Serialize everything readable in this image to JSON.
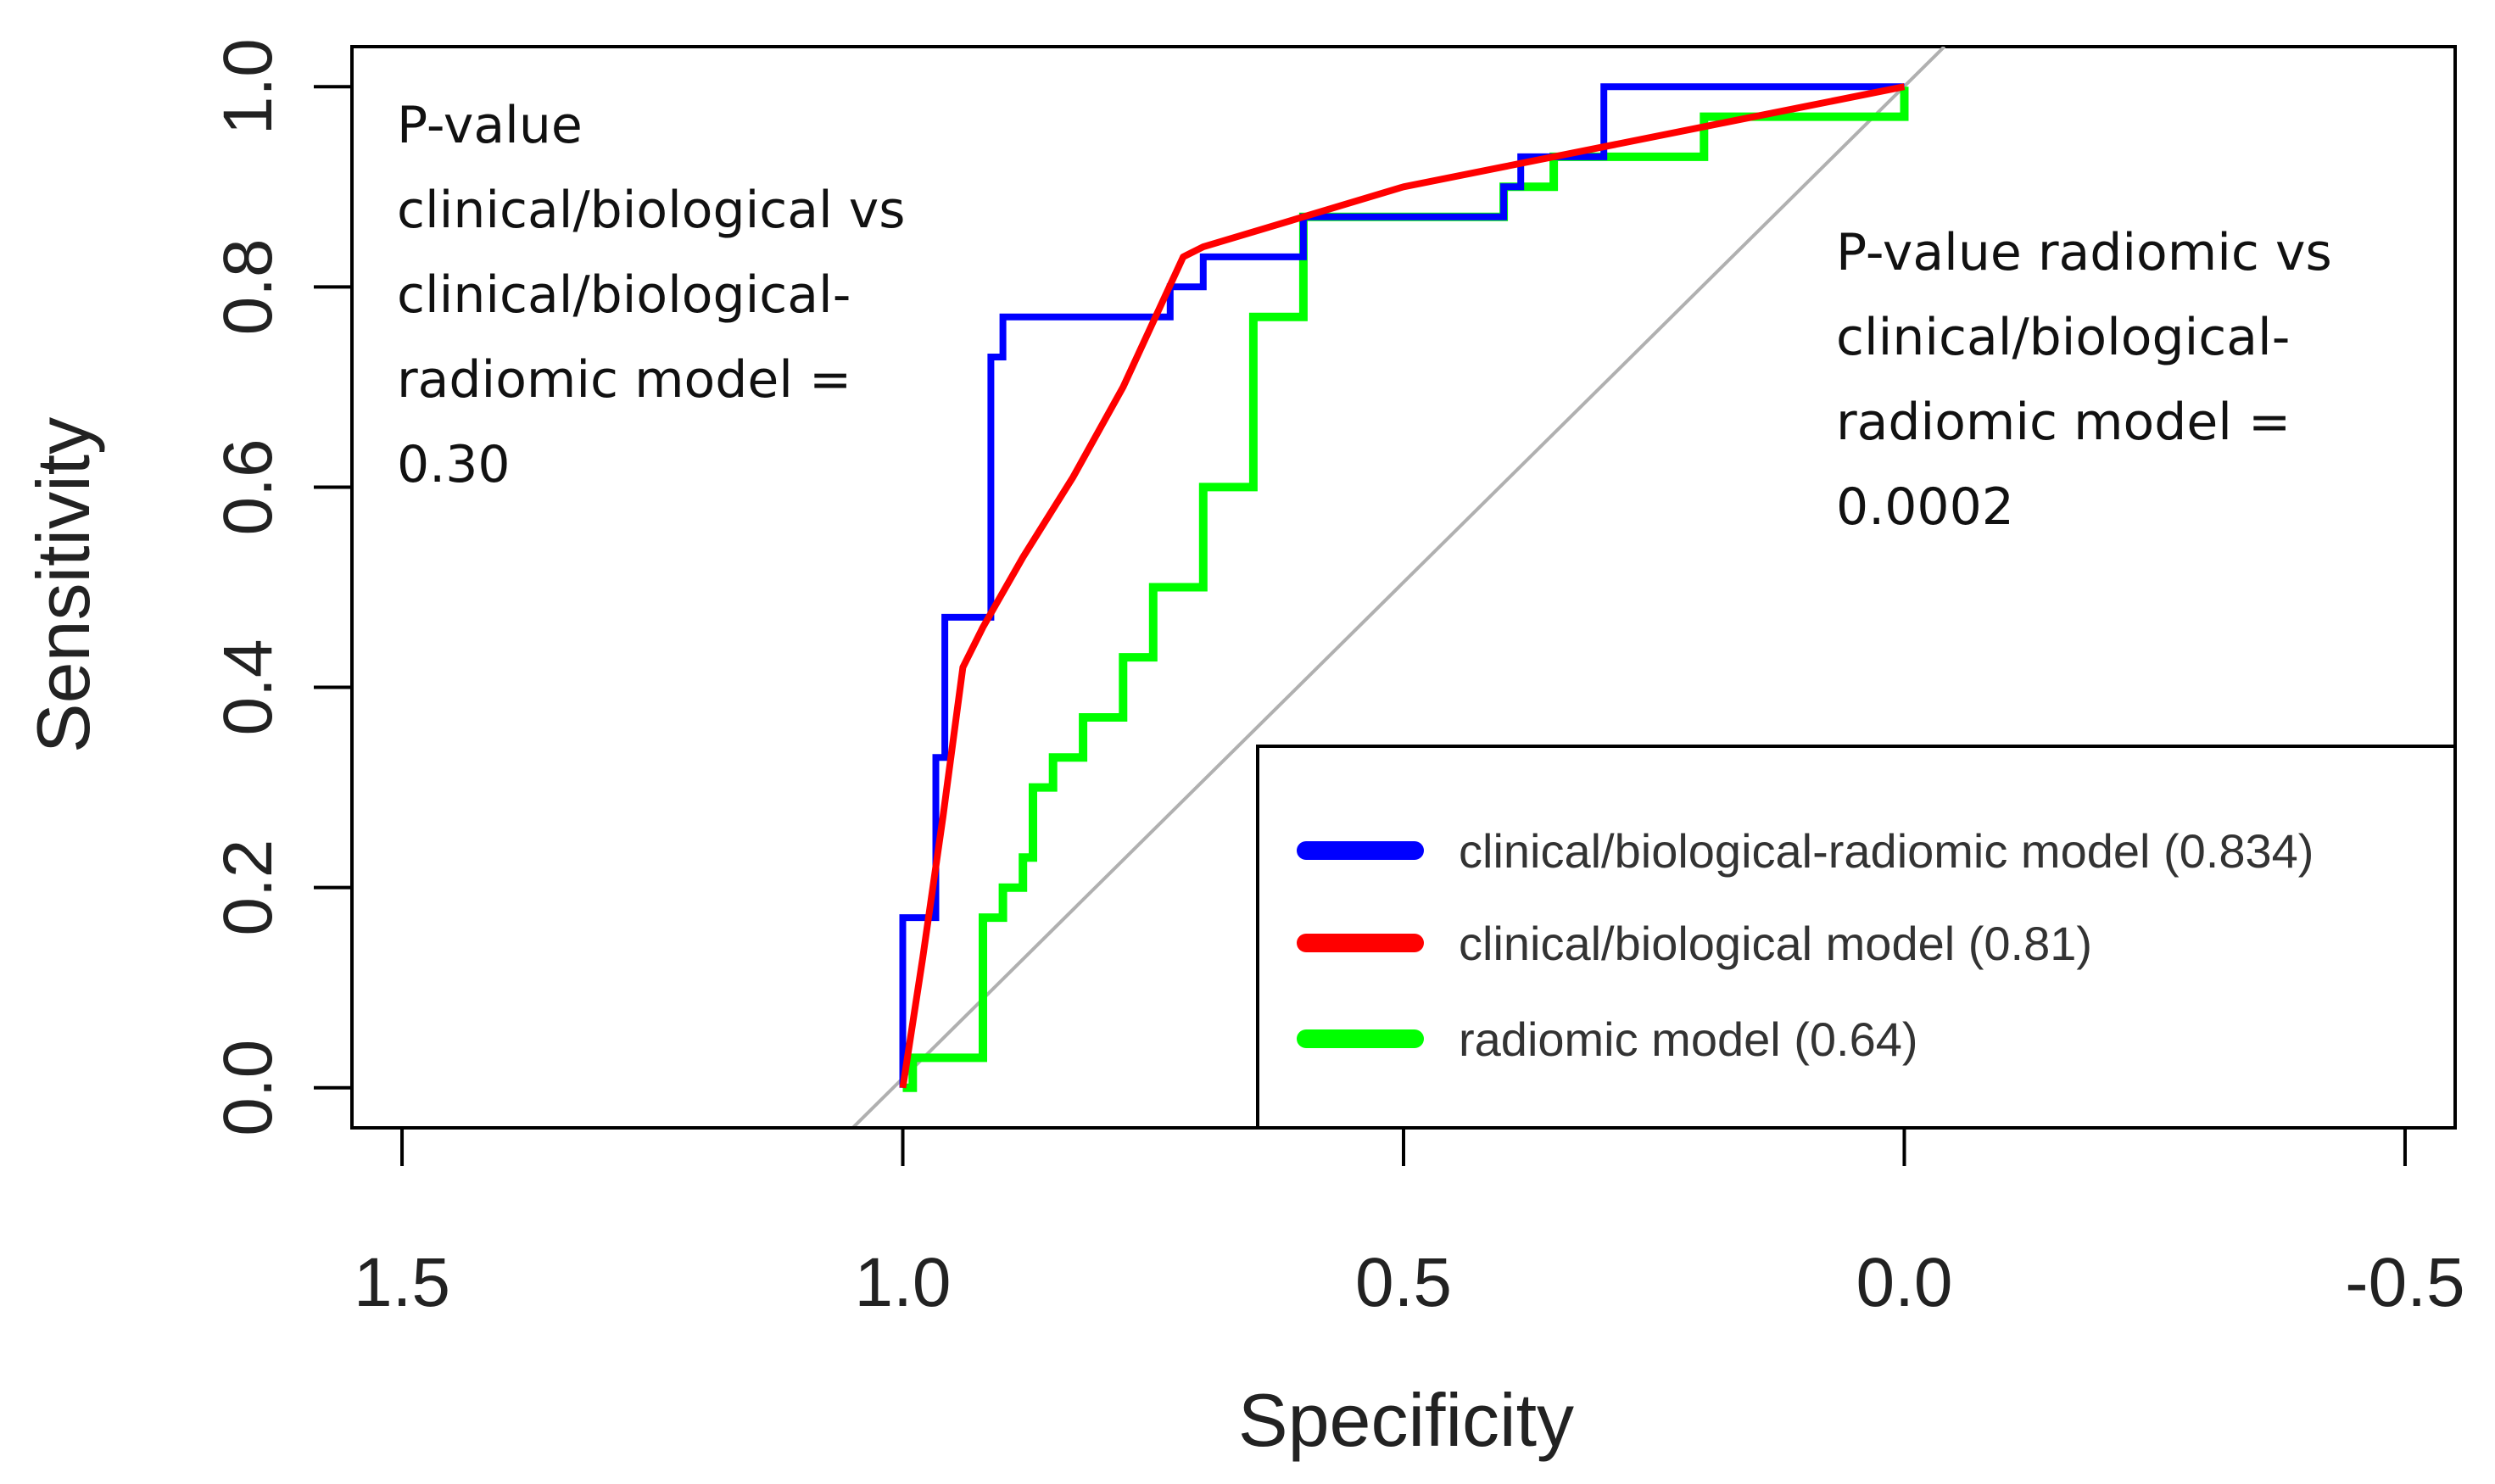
{
  "chart_data": {
    "type": "line",
    "xlabel": "Specificity",
    "ylabel": "Sensitivity",
    "xlim": [
      1.55,
      -0.55
    ],
    "ylim": [
      -0.04,
      1.04
    ],
    "x_ticks": [
      "1.5",
      "1.0",
      "0.5",
      "0.0",
      "-0.5"
    ],
    "x_tick_values": [
      1.5,
      1.0,
      0.5,
      0.0,
      -0.5
    ],
    "y_ticks": [
      "0.0",
      "0.2",
      "0.4",
      "0.6",
      "0.8",
      "1.0"
    ],
    "y_tick_values": [
      0.0,
      0.2,
      0.4,
      0.6,
      0.8,
      1.0
    ],
    "diagonal": {
      "color": "#b0b0b0",
      "from": [
        1.05,
        -0.04
      ],
      "to": [
        -0.04,
        1.04
      ]
    },
    "annotations": [
      {
        "id": "left",
        "lines": [
          "P-value",
          "clinical/biological vs",
          "clinical/biological-",
          "radiomic model =",
          "0.30"
        ]
      },
      {
        "id": "right",
        "lines": [
          "P-value radiomic vs",
          "clinical/biological-",
          "radiomic model =",
          "0.0002"
        ]
      }
    ],
    "legend_position": "bottom-right",
    "series": [
      {
        "name": "clinical/biological-radiomic model",
        "legend_label": "clinical/biological-radiomic model (0.834)",
        "auc": 0.834,
        "color": "#0000ff",
        "x": [
          1.0,
          1.0,
          0.967,
          0.967,
          0.958,
          0.958,
          0.945,
          0.945,
          0.912,
          0.912,
          0.9,
          0.9,
          0.733,
          0.733,
          0.7,
          0.7,
          0.6,
          0.6,
          0.4,
          0.4,
          0.383,
          0.383,
          0.3,
          0.3,
          0.0
        ],
        "y": [
          0.0,
          0.17,
          0.17,
          0.33,
          0.33,
          0.47,
          0.47,
          0.47,
          0.47,
          0.73,
          0.73,
          0.77,
          0.77,
          0.8,
          0.8,
          0.83,
          0.83,
          0.87,
          0.87,
          0.9,
          0.9,
          0.93,
          0.93,
          1.0,
          1.0
        ]
      },
      {
        "name": "clinical/biological model",
        "legend_label": "clinical/biological model (0.81)",
        "auc": 0.81,
        "color": "#ff0000",
        "x": [
          1.0,
          0.98,
          0.96,
          0.94,
          0.92,
          0.88,
          0.83,
          0.78,
          0.72,
          0.7,
          0.6,
          0.5,
          0.4,
          0.3,
          0.2,
          0.1,
          0.0
        ],
        "y": [
          0.0,
          0.13,
          0.27,
          0.42,
          0.46,
          0.53,
          0.61,
          0.7,
          0.83,
          0.84,
          0.87,
          0.9,
          0.92,
          0.94,
          0.96,
          0.98,
          1.0
        ]
      },
      {
        "name": "radiomic model",
        "legend_label": "radiomic model (0.64)",
        "auc": 0.64,
        "color": "#00ff00",
        "x": [
          1.0,
          0.99,
          0.99,
          0.92,
          0.92,
          0.9,
          0.9,
          0.88,
          0.88,
          0.87,
          0.87,
          0.85,
          0.85,
          0.82,
          0.82,
          0.78,
          0.78,
          0.75,
          0.75,
          0.7,
          0.7,
          0.65,
          0.65,
          0.6,
          0.6,
          0.5,
          0.5,
          0.4,
          0.4,
          0.35,
          0.35,
          0.2,
          0.2,
          0.1,
          0.1,
          0.0,
          0.0
        ],
        "y": [
          0.0,
          0.0,
          0.03,
          0.03,
          0.17,
          0.17,
          0.2,
          0.2,
          0.23,
          0.23,
          0.3,
          0.3,
          0.33,
          0.33,
          0.37,
          0.37,
          0.43,
          0.43,
          0.5,
          0.5,
          0.6,
          0.6,
          0.77,
          0.77,
          0.87,
          0.87,
          0.87,
          0.87,
          0.9,
          0.9,
          0.93,
          0.93,
          0.97,
          0.97,
          0.97,
          0.97,
          1.0
        ]
      }
    ]
  }
}
